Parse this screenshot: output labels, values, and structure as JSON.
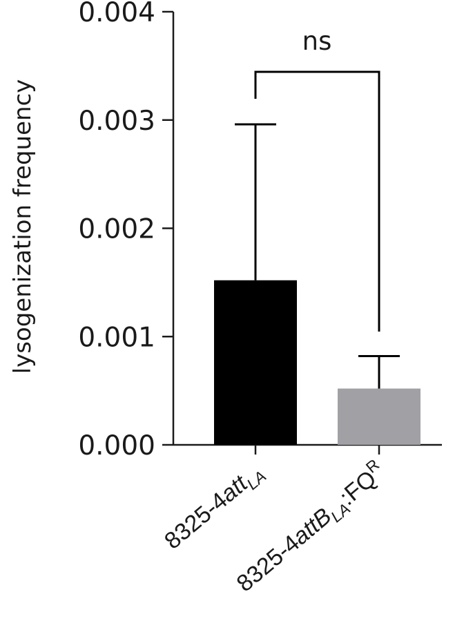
{
  "chart_data": {
    "type": "bar",
    "ylabel": "lysogenization frequency",
    "xlabel": "",
    "ylim": [
      0,
      0.004
    ],
    "yticks": [
      "0.000",
      "0.001",
      "0.002",
      "0.003",
      "0.004"
    ],
    "categories": [
      {
        "prefix": "8325-4",
        "italic": "att",
        "subscript": "LA",
        "suffix": "",
        "superscript": "",
        "full": "8325-4attLA"
      },
      {
        "prefix": "8325-4",
        "italic": "attB",
        "subscript": "LA",
        "suffix": ":FQ",
        "superscript": "R",
        "full": "8325-4attBLA:FQR"
      }
    ],
    "values": [
      0.00152,
      0.00052
    ],
    "error_upper": [
      0.00296,
      0.00082
    ],
    "colors": [
      "#000000",
      "#a1a1a5"
    ],
    "significance": {
      "between": [
        0,
        1
      ],
      "label": "ns"
    }
  }
}
